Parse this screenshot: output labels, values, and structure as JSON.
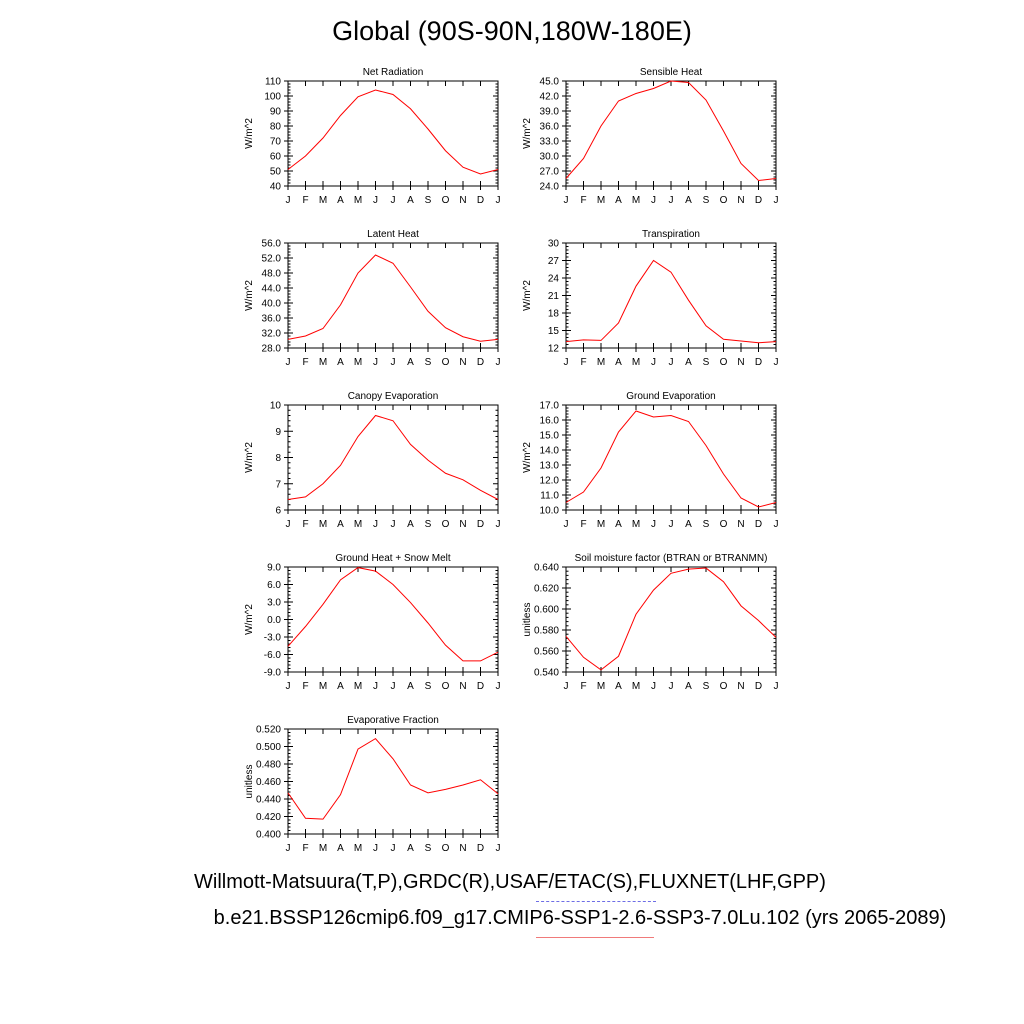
{
  "title": "Global (90S-90N,180W-180E)",
  "footer": {
    "line1": "Willmott-Matsuura(T,P),GRDC(R),USAF/ETAC(S),FLUXNET(LHF,GPP)",
    "line2": "b.e21.BSSP126cmip6.f09_g17.CMIP6-SSP1-2.6-SSP3-7.0Lu.102 (yrs 2065-2089)"
  },
  "line_color": "#ff0000",
  "chart_data": [
    {
      "type": "line",
      "title": "Net Radiation",
      "ylabel": "W/m^2",
      "x": [
        "J",
        "F",
        "M",
        "A",
        "M",
        "J",
        "J",
        "A",
        "S",
        "O",
        "N",
        "D",
        "J"
      ],
      "values": [
        51,
        60,
        72,
        87,
        99.5,
        104,
        101,
        91.5,
        78,
        63.5,
        52.5,
        48,
        51
      ],
      "ylim": [
        40,
        110
      ],
      "yticks": [
        "40",
        "50",
        "60",
        "70",
        "80",
        "90",
        "100",
        "110"
      ]
    },
    {
      "type": "line",
      "title": "Sensible Heat",
      "ylabel": "W/m^2",
      "x": [
        "J",
        "F",
        "M",
        "A",
        "M",
        "J",
        "J",
        "A",
        "S",
        "O",
        "N",
        "D",
        "J"
      ],
      "values": [
        25.5,
        29.5,
        36,
        41,
        42.5,
        43.5,
        45,
        44.7,
        41.2,
        35,
        28.5,
        25.1,
        25.5
      ],
      "ylim": [
        24,
        45
      ],
      "yticks": [
        "24.0",
        "27.0",
        "30.0",
        "33.0",
        "36.0",
        "39.0",
        "42.0",
        "45.0"
      ]
    },
    {
      "type": "line",
      "title": "Latent Heat",
      "ylabel": "W/m^2",
      "x": [
        "J",
        "F",
        "M",
        "A",
        "M",
        "J",
        "J",
        "A",
        "S",
        "O",
        "N",
        "D",
        "J"
      ],
      "values": [
        30.3,
        31.2,
        33.2,
        39.5,
        48,
        52.8,
        50.6,
        44.3,
        37.8,
        33.4,
        31,
        29.8,
        30.3
      ],
      "ylim": [
        28,
        56
      ],
      "yticks": [
        "28.0",
        "32.0",
        "36.0",
        "40.0",
        "44.0",
        "48.0",
        "52.0",
        "56.0"
      ]
    },
    {
      "type": "line",
      "title": "Transpiration",
      "ylabel": "W/m^2",
      "x": [
        "J",
        "F",
        "M",
        "A",
        "M",
        "J",
        "J",
        "A",
        "S",
        "O",
        "N",
        "D",
        "J"
      ],
      "values": [
        13.1,
        13.4,
        13.3,
        16.3,
        22.6,
        27,
        25,
        20.2,
        15.8,
        13.5,
        13.2,
        12.9,
        13.1
      ],
      "ylim": [
        12,
        30
      ],
      "yticks": [
        "12",
        "15",
        "18",
        "21",
        "24",
        "27",
        "30"
      ]
    },
    {
      "type": "line",
      "title": "Canopy Evaporation",
      "ylabel": "W/m^2",
      "x": [
        "J",
        "F",
        "M",
        "A",
        "M",
        "J",
        "J",
        "A",
        "S",
        "O",
        "N",
        "D",
        "J"
      ],
      "values": [
        6.4,
        6.5,
        7,
        7.7,
        8.8,
        9.6,
        9.4,
        8.5,
        7.9,
        7.4,
        7.15,
        6.75,
        6.4
      ],
      "ylim": [
        6,
        10
      ],
      "yticks": [
        "6",
        "7",
        "8",
        "9",
        "10"
      ]
    },
    {
      "type": "line",
      "title": "Ground Evaporation",
      "ylabel": "W/m^2",
      "x": [
        "J",
        "F",
        "M",
        "A",
        "M",
        "J",
        "J",
        "A",
        "S",
        "O",
        "N",
        "D",
        "J"
      ],
      "values": [
        10.5,
        11.2,
        12.8,
        15.2,
        16.6,
        16.2,
        16.3,
        15.9,
        14.3,
        12.4,
        10.8,
        10.2,
        10.5
      ],
      "ylim": [
        10,
        17
      ],
      "yticks": [
        "10.0",
        "11.0",
        "12.0",
        "13.0",
        "14.0",
        "15.0",
        "16.0",
        "17.0"
      ]
    },
    {
      "type": "line",
      "title": "Ground Heat + Snow Melt",
      "ylabel": "W/m^2",
      "x": [
        "J",
        "F",
        "M",
        "A",
        "M",
        "J",
        "J",
        "A",
        "S",
        "O",
        "N",
        "D",
        "J"
      ],
      "values": [
        -4.6,
        -1.2,
        2.6,
        6.8,
        8.9,
        8.3,
        6,
        2.9,
        -0.6,
        -4.4,
        -7.1,
        -7.1,
        -5.6
      ],
      "ylim": [
        -9,
        9
      ],
      "yticks": [
        "-9.0",
        "-6.0",
        "-3.0",
        "0.0",
        "3.0",
        "6.0",
        "9.0"
      ]
    },
    {
      "type": "line",
      "title": "Soil moisture factor (BTRAN or BTRANMN)",
      "ylabel": "unitless",
      "x": [
        "J",
        "F",
        "M",
        "A",
        "M",
        "J",
        "J",
        "A",
        "S",
        "O",
        "N",
        "D",
        "J"
      ],
      "values": [
        0.574,
        0.554,
        0.542,
        0.555,
        0.595,
        0.618,
        0.634,
        0.638,
        0.639,
        0.626,
        0.603,
        0.589,
        0.573
      ],
      "ylim": [
        0.54,
        0.64
      ],
      "yticks": [
        "0.540",
        "0.560",
        "0.580",
        "0.600",
        "0.620",
        "0.640"
      ]
    },
    {
      "type": "line",
      "title": "Evaporative Fraction",
      "ylabel": "unitless",
      "x": [
        "J",
        "F",
        "M",
        "A",
        "M",
        "J",
        "J",
        "A",
        "S",
        "O",
        "N",
        "D",
        "J"
      ],
      "values": [
        0.447,
        0.418,
        0.417,
        0.445,
        0.497,
        0.509,
        0.486,
        0.456,
        0.447,
        0.451,
        0.456,
        0.462,
        0.446
      ],
      "ylim": [
        0.4,
        0.52
      ],
      "yticks": [
        "0.400",
        "0.420",
        "0.440",
        "0.460",
        "0.480",
        "0.500",
        "0.520"
      ]
    }
  ]
}
